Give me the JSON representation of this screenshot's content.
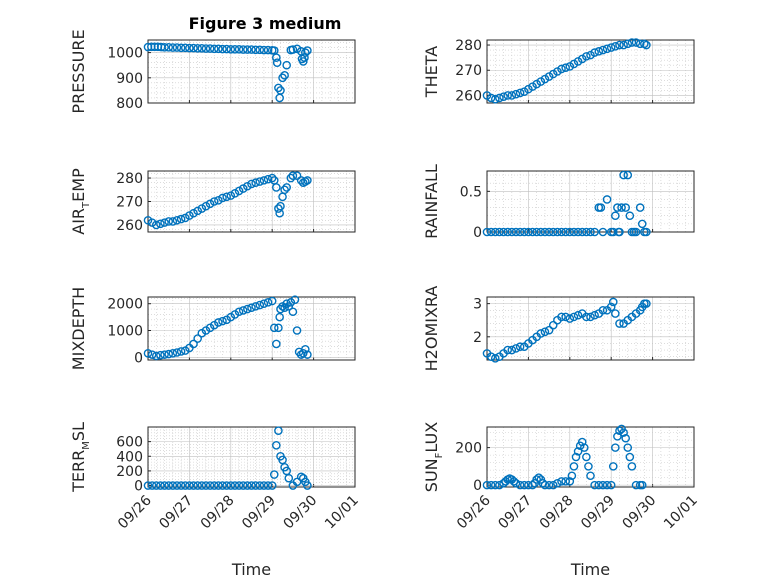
{
  "figure": {
    "title": "Figure 3 medium",
    "marker_color": "#0072BD",
    "marker": "circle",
    "grid": "on, major and minor"
  },
  "chart_data": [
    {
      "id": "pressure",
      "type": "scatter",
      "title": "Figure 3 medium",
      "ylabel": {
        "main": "PRESSURE",
        "sub": ""
      },
      "xlabel": "",
      "show_xticks": false,
      "xlim": [
        0,
        5
      ],
      "xticks": [
        0,
        1,
        2,
        3,
        4,
        5
      ],
      "ylim": [
        800,
        1050
      ],
      "yticks": [
        800,
        900,
        1000
      ],
      "yticklabels": [
        "800",
        "900",
        "1000"
      ],
      "x": [
        0,
        0.08,
        0.16,
        0.24,
        0.32,
        0.4,
        0.5,
        0.6,
        0.7,
        0.8,
        0.9,
        1.0,
        1.1,
        1.2,
        1.3,
        1.4,
        1.5,
        1.6,
        1.7,
        1.8,
        1.9,
        2.0,
        2.1,
        2.2,
        2.3,
        2.4,
        2.5,
        2.6,
        2.7,
        2.8,
        2.9,
        3.0,
        3.05,
        3.1,
        3.12,
        3.15,
        3.18,
        3.2,
        3.25,
        3.3,
        3.35,
        3.45,
        3.5,
        3.6,
        3.7,
        3.72,
        3.75,
        3.78,
        3.8,
        3.85
      ],
      "y": [
        1022,
        1023,
        1023,
        1023,
        1022,
        1021,
        1021,
        1020,
        1020,
        1019,
        1019,
        1018,
        1018,
        1017,
        1017,
        1016,
        1016,
        1015,
        1015,
        1014,
        1014,
        1013,
        1013,
        1013,
        1012,
        1012,
        1012,
        1011,
        1011,
        1010,
        1010,
        1009,
        1008,
        980,
        960,
        860,
        820,
        850,
        900,
        910,
        950,
        1010,
        1012,
        1015,
        1005,
        975,
        965,
        980,
        1000,
        1008
      ]
    },
    {
      "id": "theta",
      "type": "scatter",
      "ylabel": {
        "main": "THETA",
        "sub": ""
      },
      "xlabel": "",
      "show_xticks": false,
      "xlim": [
        0,
        5
      ],
      "xticks": [
        0,
        1,
        2,
        3,
        4,
        5
      ],
      "ylim": [
        257,
        282
      ],
      "yticks": [
        260,
        270,
        280
      ],
      "yticklabels": [
        "260",
        "270",
        "280"
      ],
      "x": [
        0,
        0.1,
        0.2,
        0.3,
        0.4,
        0.5,
        0.6,
        0.7,
        0.8,
        0.9,
        1.0,
        1.1,
        1.2,
        1.3,
        1.4,
        1.5,
        1.6,
        1.7,
        1.8,
        1.9,
        2.0,
        2.1,
        2.2,
        2.3,
        2.4,
        2.5,
        2.6,
        2.7,
        2.8,
        2.9,
        3.0,
        3.1,
        3.2,
        3.3,
        3.4,
        3.5,
        3.6,
        3.7,
        3.8,
        3.85
      ],
      "y": [
        260,
        259,
        258.5,
        259,
        259.5,
        260,
        260,
        260.5,
        261,
        261.5,
        262.5,
        263.5,
        264.5,
        265.5,
        266.5,
        267.5,
        268.5,
        269.5,
        270.5,
        271,
        271.5,
        272.5,
        273.5,
        274.5,
        275.5,
        276,
        277,
        277.5,
        278,
        278.5,
        279,
        279.5,
        280,
        280,
        280.5,
        281,
        281,
        280.5,
        280.5,
        280
      ]
    },
    {
      "id": "air_temp",
      "type": "scatter",
      "ylabel": {
        "main": "AIR",
        "sub": "T",
        "rest": "EMP"
      },
      "xlabel": "",
      "show_xticks": false,
      "xlim": [
        0,
        5
      ],
      "xticks": [
        0,
        1,
        2,
        3,
        4,
        5
      ],
      "ylim": [
        257,
        283
      ],
      "yticks": [
        260,
        270,
        280
      ],
      "yticklabels": [
        "260",
        "270",
        "280"
      ],
      "x": [
        0,
        0.1,
        0.2,
        0.3,
        0.4,
        0.5,
        0.6,
        0.7,
        0.8,
        0.9,
        1.0,
        1.1,
        1.2,
        1.3,
        1.4,
        1.5,
        1.6,
        1.7,
        1.8,
        1.9,
        2.0,
        2.1,
        2.2,
        2.3,
        2.4,
        2.5,
        2.6,
        2.7,
        2.8,
        2.9,
        3.0,
        3.05,
        3.1,
        3.15,
        3.18,
        3.2,
        3.25,
        3.3,
        3.35,
        3.45,
        3.5,
        3.6,
        3.7,
        3.75,
        3.8,
        3.85
      ],
      "y": [
        262,
        261,
        260,
        260.5,
        261,
        261.5,
        261.5,
        262,
        262.5,
        263,
        264,
        265,
        266,
        267,
        268,
        269,
        270,
        270.5,
        271.5,
        272,
        272.5,
        273.5,
        274.5,
        275.5,
        276.5,
        277.5,
        278,
        278.5,
        279,
        279.5,
        280,
        279,
        276,
        267,
        265,
        268,
        272,
        275,
        276,
        280,
        281,
        281,
        279,
        278,
        278.5,
        279
      ]
    },
    {
      "id": "rainfall",
      "type": "scatter",
      "ylabel": {
        "main": "RAINFALL",
        "sub": ""
      },
      "xlabel": "",
      "show_xticks": false,
      "xlim": [
        0,
        5
      ],
      "xticks": [
        0,
        1,
        2,
        3,
        4,
        5
      ],
      "ylim": [
        0,
        0.75
      ],
      "yticks": [
        0,
        0.5
      ],
      "yticklabels": [
        "0",
        "0.5"
      ],
      "x": [
        0,
        0.1,
        0.2,
        0.3,
        0.4,
        0.5,
        0.6,
        0.7,
        0.8,
        0.9,
        1.0,
        1.1,
        1.2,
        1.3,
        1.4,
        1.5,
        1.6,
        1.7,
        1.8,
        1.9,
        2.0,
        2.1,
        2.2,
        2.3,
        2.4,
        2.5,
        2.6,
        2.7,
        2.75,
        2.8,
        2.9,
        3.0,
        3.05,
        3.1,
        3.15,
        3.18,
        3.2,
        3.25,
        3.3,
        3.35,
        3.4,
        3.45,
        3.5,
        3.55,
        3.6,
        3.7,
        3.75,
        3.8,
        3.85
      ],
      "y": [
        0,
        0,
        0,
        0,
        0,
        0,
        0,
        0,
        0,
        0,
        0,
        0,
        0,
        0,
        0,
        0,
        0,
        0,
        0,
        0,
        0,
        0,
        0,
        0,
        0,
        0,
        0,
        0.3,
        0.3,
        0,
        0.4,
        0,
        0,
        0.2,
        0.3,
        0,
        0,
        0.3,
        0.7,
        0.3,
        0.7,
        0.2,
        0,
        0,
        0,
        0.3,
        0.1,
        0,
        0
      ]
    },
    {
      "id": "mixdepth",
      "type": "scatter",
      "ylabel": {
        "main": "MIXDEPTH",
        "sub": ""
      },
      "xlabel": "",
      "show_xticks": false,
      "xlim": [
        0,
        5
      ],
      "xticks": [
        0,
        1,
        2,
        3,
        4,
        5
      ],
      "ylim": [
        -100,
        2250
      ],
      "yticks": [
        0,
        1000,
        2000
      ],
      "yticklabels": [
        "0",
        "1000",
        "2000"
      ],
      "x": [
        0,
        0.1,
        0.2,
        0.3,
        0.4,
        0.5,
        0.6,
        0.7,
        0.8,
        0.9,
        1.0,
        1.1,
        1.2,
        1.3,
        1.4,
        1.5,
        1.6,
        1.7,
        1.8,
        1.9,
        2.0,
        2.1,
        2.2,
        2.3,
        2.4,
        2.5,
        2.6,
        2.7,
        2.8,
        2.9,
        3.0,
        3.05,
        3.1,
        3.15,
        3.18,
        3.2,
        3.25,
        3.3,
        3.35,
        3.4,
        3.45,
        3.5,
        3.55,
        3.6,
        3.65,
        3.7,
        3.75,
        3.8,
        3.85
      ],
      "y": [
        150,
        100,
        50,
        80,
        100,
        120,
        150,
        180,
        220,
        250,
        350,
        500,
        700,
        900,
        1000,
        1100,
        1200,
        1300,
        1350,
        1400,
        1500,
        1600,
        1700,
        1750,
        1800,
        1850,
        1900,
        1950,
        2000,
        2050,
        2100,
        1100,
        500,
        1100,
        1500,
        1800,
        1900,
        1850,
        2000,
        1900,
        2050,
        1700,
        2150,
        1000,
        200,
        100,
        150,
        300,
        100
      ]
    },
    {
      "id": "h2omixra",
      "type": "scatter",
      "ylabel": {
        "main": "H2OMIXRA",
        "sub": ""
      },
      "xlabel": "",
      "show_xticks": false,
      "xlim": [
        0,
        5
      ],
      "xticks": [
        0,
        1,
        2,
        3,
        4,
        5
      ],
      "ylim": [
        1.3,
        3.2
      ],
      "yticks": [
        2,
        3
      ],
      "yticklabels": [
        "2",
        "3"
      ],
      "x": [
        0,
        0.1,
        0.2,
        0.3,
        0.4,
        0.5,
        0.6,
        0.7,
        0.8,
        0.9,
        1.0,
        1.1,
        1.2,
        1.3,
        1.4,
        1.5,
        1.6,
        1.7,
        1.8,
        1.9,
        2.0,
        2.1,
        2.2,
        2.3,
        2.4,
        2.5,
        2.6,
        2.7,
        2.8,
        2.9,
        3.0,
        3.05,
        3.1,
        3.2,
        3.3,
        3.4,
        3.5,
        3.6,
        3.7,
        3.75,
        3.8,
        3.85
      ],
      "y": [
        1.5,
        1.4,
        1.35,
        1.4,
        1.5,
        1.6,
        1.6,
        1.65,
        1.7,
        1.7,
        1.8,
        1.9,
        2.0,
        2.1,
        2.15,
        2.2,
        2.35,
        2.5,
        2.6,
        2.6,
        2.55,
        2.6,
        2.65,
        2.7,
        2.6,
        2.6,
        2.65,
        2.7,
        2.8,
        2.8,
        2.9,
        3.05,
        2.7,
        2.4,
        2.4,
        2.5,
        2.6,
        2.7,
        2.8,
        2.9,
        3.0,
        3.0
      ]
    },
    {
      "id": "terr_msl",
      "type": "scatter",
      "ylabel": {
        "main": "TERR",
        "sub": "M",
        "rest": "SL"
      },
      "xlabel": "Time",
      "show_xticks": true,
      "xlim": [
        0,
        5
      ],
      "xticks": [
        0,
        1,
        2,
        3,
        4,
        5
      ],
      "xticklabels": [
        "09/26",
        "09/27",
        "09/28",
        "09/29",
        "09/30",
        "10/01"
      ],
      "ylim": [
        -20,
        800
      ],
      "yticks": [
        0,
        200,
        400,
        600
      ],
      "yticklabels": [
        "0",
        "200",
        "400",
        "600"
      ],
      "x": [
        0,
        0.1,
        0.2,
        0.3,
        0.4,
        0.5,
        0.6,
        0.7,
        0.8,
        0.9,
        1.0,
        1.1,
        1.2,
        1.3,
        1.4,
        1.5,
        1.6,
        1.7,
        1.8,
        1.9,
        2.0,
        2.1,
        2.2,
        2.3,
        2.4,
        2.5,
        2.6,
        2.7,
        2.8,
        2.9,
        3.0,
        3.05,
        3.1,
        3.15,
        3.2,
        3.25,
        3.3,
        3.35,
        3.4,
        3.5,
        3.6,
        3.7,
        3.75,
        3.8,
        3.85
      ],
      "y": [
        0,
        0,
        0,
        0,
        0,
        0,
        0,
        0,
        0,
        0,
        0,
        0,
        0,
        0,
        0,
        0,
        0,
        0,
        0,
        0,
        0,
        0,
        0,
        0,
        0,
        0,
        0,
        0,
        0,
        0,
        0,
        150,
        550,
        750,
        400,
        350,
        250,
        200,
        100,
        0,
        50,
        120,
        100,
        50,
        0
      ]
    },
    {
      "id": "sun_flux",
      "type": "scatter",
      "ylabel": {
        "main": "SUN",
        "sub": "F",
        "rest": "LUX"
      },
      "xlabel": "Time",
      "show_xticks": true,
      "xlim": [
        0,
        5
      ],
      "xticks": [
        0,
        1,
        2,
        3,
        4,
        5
      ],
      "xticklabels": [
        "09/26",
        "09/27",
        "09/28",
        "09/29",
        "09/30",
        "10/01"
      ],
      "ylim": [
        -10,
        310
      ],
      "yticks": [
        0,
        200
      ],
      "yticklabels": [
        "0",
        "200"
      ],
      "x": [
        0,
        0.1,
        0.2,
        0.3,
        0.4,
        0.45,
        0.5,
        0.55,
        0.6,
        0.65,
        0.7,
        0.8,
        0.9,
        1.0,
        1.1,
        1.15,
        1.2,
        1.25,
        1.3,
        1.35,
        1.4,
        1.5,
        1.6,
        1.7,
        1.8,
        1.9,
        2.0,
        2.05,
        2.1,
        2.15,
        2.2,
        2.25,
        2.3,
        2.35,
        2.4,
        2.45,
        2.5,
        2.6,
        2.7,
        2.8,
        2.9,
        3.0,
        3.05,
        3.1,
        3.15,
        3.2,
        3.25,
        3.3,
        3.35,
        3.4,
        3.45,
        3.5,
        3.6,
        3.7,
        3.75
      ],
      "y": [
        0,
        0,
        0,
        0,
        10,
        20,
        30,
        35,
        30,
        20,
        10,
        0,
        0,
        0,
        0,
        10,
        30,
        40,
        30,
        10,
        0,
        0,
        0,
        10,
        20,
        20,
        20,
        50,
        100,
        150,
        180,
        210,
        230,
        200,
        150,
        100,
        50,
        0,
        0,
        0,
        0,
        0,
        100,
        200,
        260,
        290,
        300,
        280,
        250,
        200,
        150,
        100,
        0,
        0,
        0
      ]
    }
  ]
}
